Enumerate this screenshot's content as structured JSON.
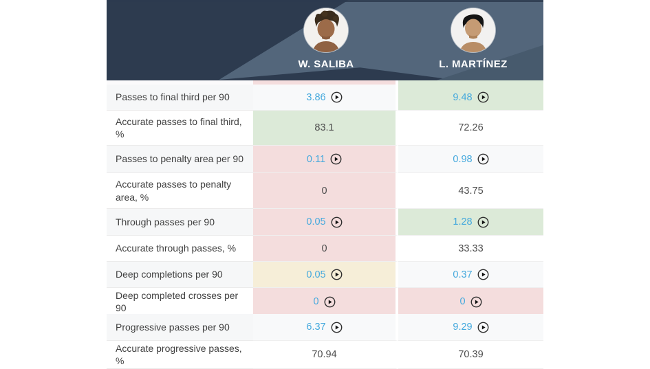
{
  "header": {
    "players": [
      {
        "name": "W. SALIBA"
      },
      {
        "name": "L. MARTÍNEZ"
      }
    ]
  },
  "scroll_sliver": {
    "saliba_highlight": "red",
    "martinez_highlight": "green"
  },
  "table": {
    "rows": [
      {
        "label": "Passes to final third per 90",
        "cells": [
          {
            "value": "3.86",
            "play": true,
            "highlight": null
          },
          {
            "value": "9.48",
            "play": true,
            "highlight": "green"
          }
        ]
      },
      {
        "label": "Accurate passes to final third, %",
        "cells": [
          {
            "value": "83.1",
            "play": false,
            "highlight": "green"
          },
          {
            "value": "72.26",
            "play": false,
            "highlight": null
          }
        ]
      },
      {
        "label": "Passes to penalty area per 90",
        "cells": [
          {
            "value": "0.11",
            "play": true,
            "highlight": "red"
          },
          {
            "value": "0.98",
            "play": true,
            "highlight": null
          }
        ]
      },
      {
        "label": "Accurate passes to penalty area, %",
        "cells": [
          {
            "value": "0",
            "play": false,
            "highlight": "red"
          },
          {
            "value": "43.75",
            "play": false,
            "highlight": null
          }
        ]
      },
      {
        "label": "Through passes per 90",
        "cells": [
          {
            "value": "0.05",
            "play": true,
            "highlight": "red"
          },
          {
            "value": "1.28",
            "play": true,
            "highlight": "green"
          }
        ]
      },
      {
        "label": "Accurate through passes, %",
        "cells": [
          {
            "value": "0",
            "play": false,
            "highlight": "red"
          },
          {
            "value": "33.33",
            "play": false,
            "highlight": null
          }
        ]
      },
      {
        "label": "Deep completions per 90",
        "cells": [
          {
            "value": "0.05",
            "play": true,
            "highlight": "yellow"
          },
          {
            "value": "0.37",
            "play": true,
            "highlight": null
          }
        ]
      },
      {
        "label": "Deep completed crosses per 90",
        "cells": [
          {
            "value": "0",
            "play": true,
            "highlight": "red"
          },
          {
            "value": "0",
            "play": true,
            "highlight": "red"
          }
        ]
      },
      {
        "label": "Progressive passes per 90",
        "cells": [
          {
            "value": "6.37",
            "play": true,
            "highlight": null
          },
          {
            "value": "9.29",
            "play": true,
            "highlight": null
          }
        ]
      },
      {
        "label": "Accurate progressive passes, %",
        "cells": [
          {
            "value": "70.94",
            "play": false,
            "highlight": null
          },
          {
            "value": "70.39",
            "play": false,
            "highlight": null
          }
        ]
      }
    ]
  },
  "icons": {
    "play_icon": "play-circle"
  },
  "colors": {
    "accent_blue": "#45a9dd",
    "green": "#dcead8",
    "red": "#f4dddd",
    "yellow": "#f6eed8",
    "header_dark": "#2d3b4f",
    "header_slate": "#53667b",
    "header_corner": "#475a6d"
  }
}
